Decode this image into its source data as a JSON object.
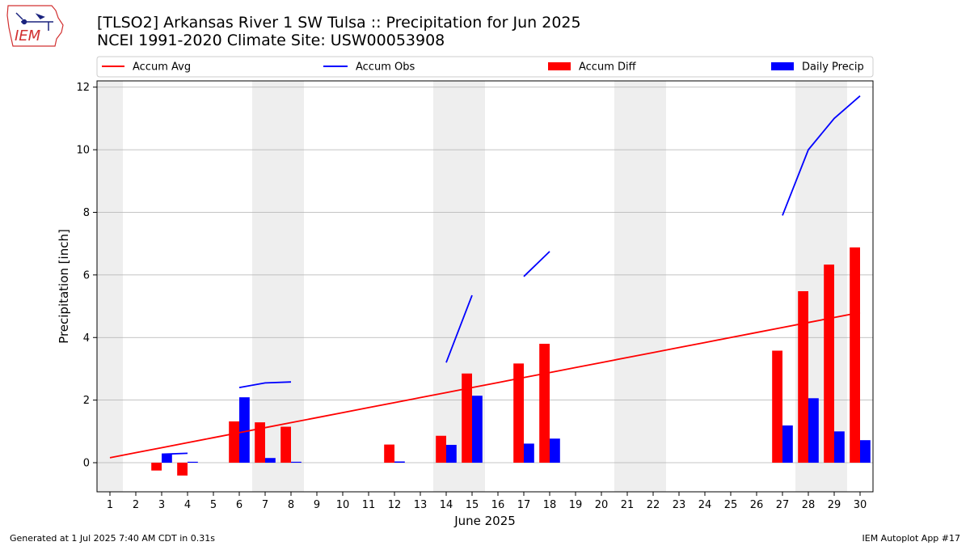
{
  "header": {
    "title_line1": "[TLSO2] Arkansas River 1 SW Tulsa :: Precipitation for Jun 2025",
    "title_line2": "NCEI 1991-2020 Climate Site: USW00053908"
  },
  "logo": {
    "text": "IEM",
    "icon": "iem-iowa-logo"
  },
  "footer": {
    "generated": "Generated at 1 Jul 2025 7:40 AM CDT in 0.31s",
    "app": "IEM Autoplot App #17"
  },
  "colors": {
    "avg": "#ff0000",
    "obs": "#0000ff",
    "diff": "#ff0000",
    "daily": "#0000ff",
    "weekend": "#eeeeee",
    "grid": "#b0b0b0"
  },
  "chart_data": {
    "type": "bar",
    "xlabel": "June 2025",
    "ylabel": "Precipitation [inch]",
    "ylim": [
      -0.93,
      12.2
    ],
    "xlim": [
      0.5,
      30.5
    ],
    "yticks": [
      0,
      2,
      4,
      6,
      8,
      10,
      12
    ],
    "grid": true,
    "legend_placement": "top, above plot",
    "legend": [
      "Accum Avg",
      "Accum Obs",
      "Accum Diff",
      "Daily Precip"
    ],
    "shaded_days": [
      1,
      7,
      8,
      14,
      15,
      21,
      22,
      28,
      29
    ],
    "days": [
      1,
      2,
      3,
      4,
      5,
      6,
      7,
      8,
      9,
      10,
      11,
      12,
      13,
      14,
      15,
      16,
      17,
      18,
      19,
      20,
      21,
      22,
      23,
      24,
      25,
      26,
      27,
      28,
      29,
      30
    ],
    "series": [
      {
        "name": "Accum Avg",
        "kind": "line",
        "values": [
          0.16,
          0.32,
          0.48,
          0.64,
          0.8,
          0.96,
          1.12,
          1.28,
          1.44,
          1.6,
          1.76,
          1.92,
          2.08,
          2.24,
          2.4,
          2.56,
          2.72,
          2.88,
          3.04,
          3.2,
          3.36,
          3.52,
          3.68,
          3.84,
          4.0,
          4.16,
          4.32,
          4.48,
          4.64,
          4.8
        ]
      },
      {
        "name": "Accum Obs",
        "kind": "line",
        "values": [
          null,
          null,
          0.27,
          0.3,
          null,
          2.4,
          2.55,
          2.58,
          null,
          null,
          null,
          null,
          null,
          3.2,
          5.35,
          null,
          5.95,
          6.75,
          null,
          null,
          null,
          null,
          null,
          null,
          null,
          null,
          7.9,
          10.0,
          11.0,
          11.72
        ]
      },
      {
        "name": "Accum Diff",
        "kind": "bar",
        "values": [
          0,
          0,
          -0.25,
          -0.41,
          0,
          1.32,
          1.29,
          1.15,
          0,
          0,
          0,
          0.58,
          0,
          0.86,
          2.85,
          0,
          3.17,
          3.8,
          0,
          0,
          0,
          0,
          0,
          0,
          0,
          0,
          3.58,
          5.48,
          6.33,
          6.88
        ]
      },
      {
        "name": "Daily Precip",
        "kind": "bar",
        "values": [
          0,
          0,
          0.27,
          0.03,
          0,
          2.09,
          0.15,
          0.03,
          0,
          0,
          0,
          0.04,
          0,
          0.57,
          2.14,
          0,
          0.61,
          0.77,
          0,
          0,
          0,
          0,
          0,
          0,
          0,
          0,
          1.19,
          2.06,
          1.0,
          0.72
        ]
      }
    ]
  }
}
